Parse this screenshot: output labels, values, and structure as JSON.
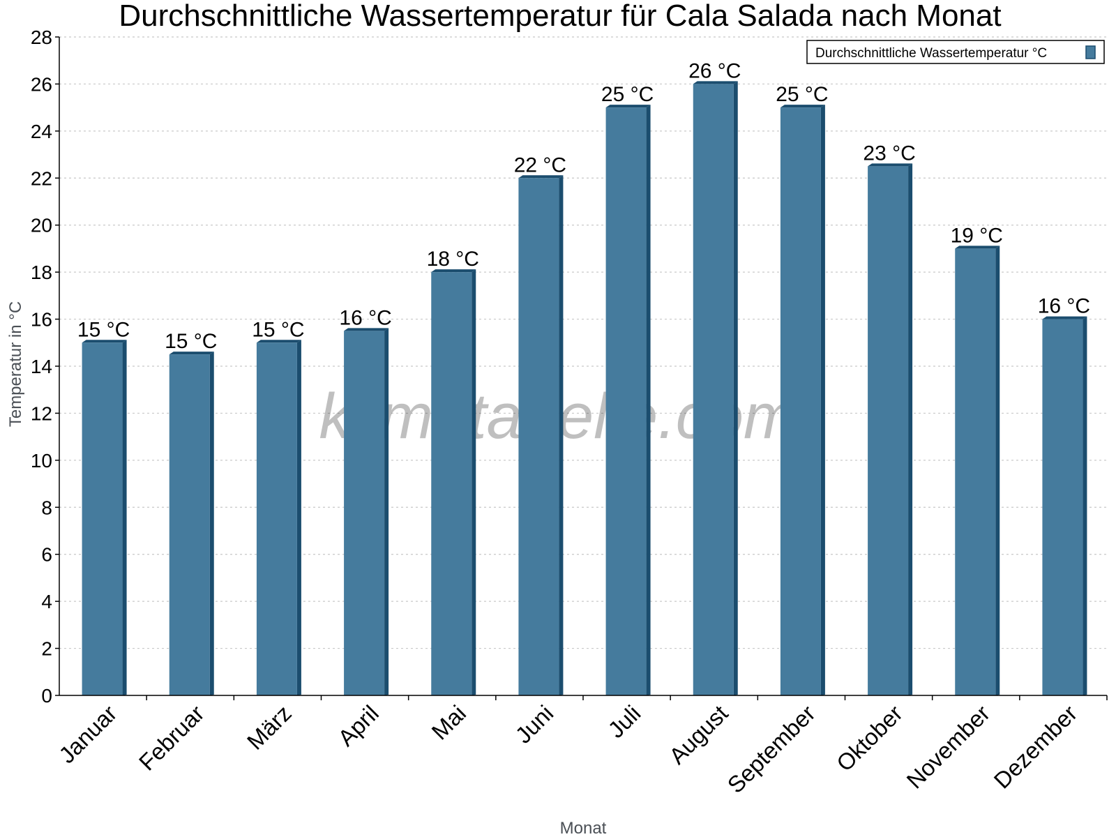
{
  "chart_data": {
    "type": "bar",
    "title": "Durchschnittliche Wassertemperatur für Cala Salada nach Monat",
    "xlabel": "Monat",
    "ylabel": "Temperatur in °C",
    "ylim": [
      0,
      28
    ],
    "yticks": [
      "0",
      "2",
      "4",
      "6",
      "8",
      "10",
      "12",
      "14",
      "16",
      "18",
      "20",
      "22",
      "24",
      "26",
      "28"
    ],
    "grid": true,
    "legend_position": "top-right",
    "categories": [
      "Januar",
      "Februar",
      "März",
      "April",
      "Mai",
      "Juni",
      "Juli",
      "August",
      "September",
      "Oktober",
      "November",
      "Dezember"
    ],
    "series": [
      {
        "name": "Durchschnittliche Wassertemperatur °C",
        "values": [
          15,
          14.5,
          15,
          15.5,
          18,
          22,
          25,
          26,
          25,
          22.5,
          19,
          16
        ],
        "data_labels": [
          "15 °C",
          "15 °C",
          "15 °C",
          "16 °C",
          "18 °C",
          "22 °C",
          "25 °C",
          "26 °C",
          "25 °C",
          "23 °C",
          "19 °C",
          "16 °C"
        ],
        "color": "#457b9d",
        "edge_color": "#1b4d6e"
      }
    ],
    "watermark": "klimatabelle.com"
  }
}
